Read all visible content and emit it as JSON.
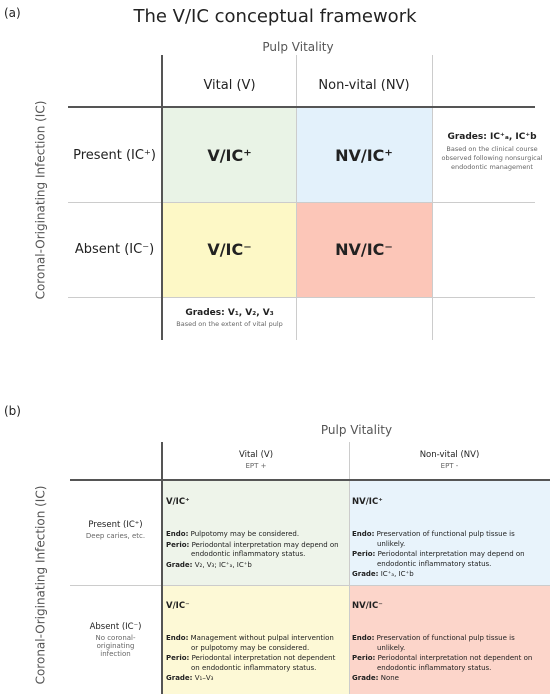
{
  "panel_a": {
    "label": "(a)",
    "title": "The V/IC conceptual framework",
    "column_header": "Pulp Vitality",
    "row_header": "Coronal-Originating Infection (IC)",
    "columns": [
      "Vital (V)",
      "Non-vital (NV)"
    ],
    "rows": [
      "Present (IC⁺)",
      "Absent (IC⁻)"
    ],
    "cells": [
      [
        "V/IC⁺",
        "NV/IC⁺"
      ],
      [
        "V/IC⁻",
        "NV/IC⁻"
      ]
    ],
    "right_note": {
      "title": "Grades: IC⁺ₐ, IC⁺b",
      "text": "Based on the clinical course observed following nonsurgical endodontic management"
    },
    "bottom_note": {
      "title": "Grades: V₁, V₂, V₃",
      "text": "Based on the extent of vital pulp"
    }
  },
  "panel_b": {
    "label": "(b)",
    "column_header": "Pulp Vitality",
    "row_header": "Coronal-Originating Infection (IC)",
    "columns": [
      {
        "name": "Vital (V)",
        "sub": "EPT +"
      },
      {
        "name": "Non-vital (NV)",
        "sub": "EPT -"
      }
    ],
    "rows": [
      {
        "name": "Present (IC⁺)",
        "sub": "Deep caries, etc."
      },
      {
        "name": "Absent (IC⁻)",
        "sub": "No coronal-originating infection"
      }
    ],
    "cells": [
      [
        {
          "title": "V/IC⁺",
          "items": [
            {
              "label": "Endo:",
              "text": "Pulpotomy may be considered."
            },
            {
              "label": "Perio:",
              "text": "Periodontal interpretation may depend on endodontic inflammatory status."
            },
            {
              "label": "Grade:",
              "text": "V₂, V₃; IC⁺ₐ, IC⁺b"
            }
          ]
        },
        {
          "title": "NV/IC⁺",
          "items": [
            {
              "label": "Endo:",
              "text": "Preservation of functional pulp tissue is unlikely."
            },
            {
              "label": "Perio:",
              "text": "Periodontal interpretation may depend on endodontic inflammatory status."
            },
            {
              "label": "Grade:",
              "text": "IC⁺ₐ, IC⁺b"
            }
          ]
        }
      ],
      [
        {
          "title": "V/IC⁻",
          "items": [
            {
              "label": "Endo:",
              "text": "Management without pulpal intervention or pulpotomy may be considered."
            },
            {
              "label": "Perio:",
              "text": "Periodontal interpretation not dependent on endodontic inflammatory status."
            },
            {
              "label": "Grade:",
              "text": "V₁–V₃"
            }
          ]
        },
        {
          "title": "NV/IC⁻",
          "items": [
            {
              "label": "Endo:",
              "text": "Preservation of functional pulp tissue is unlikely."
            },
            {
              "label": "Perio:",
              "text": "Periodontal interpretation not dependent on endodontic inflammatory status."
            },
            {
              "label": "Grade:",
              "text": "None"
            }
          ]
        }
      ]
    ]
  }
}
